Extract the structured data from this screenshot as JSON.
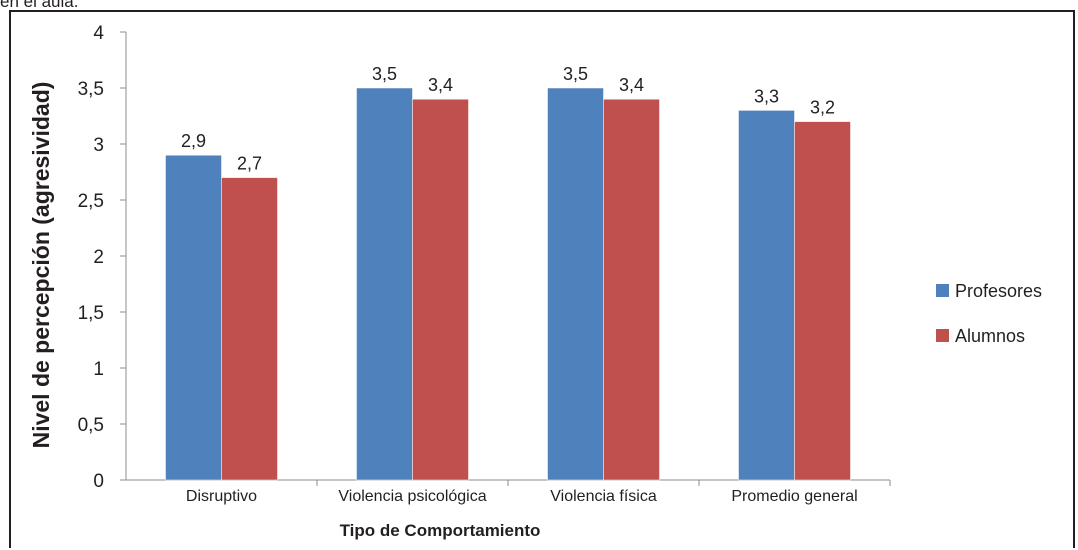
{
  "caption_fragment": "en el aula.",
  "chart_data": {
    "type": "bar",
    "categories": [
      "Disruptivo",
      "Violencia psicológica",
      "Violencia física",
      "Promedio general"
    ],
    "series": [
      {
        "name": "Profesores",
        "values": [
          2.9,
          3.5,
          3.5,
          3.3
        ],
        "color": "#4f81bd"
      },
      {
        "name": "Alumnos",
        "values": [
          2.7,
          3.4,
          3.4,
          3.2
        ],
        "color": "#c0504d"
      }
    ],
    "data_labels": [
      [
        "2,9",
        "3,5",
        "3,5",
        "3,3"
      ],
      [
        "2,7",
        "3,4",
        "3,4",
        "3,2"
      ]
    ],
    "xlabel": "Tipo de Comportamiento",
    "ylabel": "Nivel de percepción (agresividad)",
    "ylim": [
      0,
      4
    ],
    "yticks": [
      0,
      0.5,
      1,
      1.5,
      2,
      2.5,
      3,
      3.5,
      4
    ],
    "ytick_labels": [
      "0",
      "0,5",
      "1",
      "1,5",
      "2",
      "2,5",
      "3",
      "3,5",
      "4"
    ],
    "grid": false,
    "legend_position": "right"
  }
}
